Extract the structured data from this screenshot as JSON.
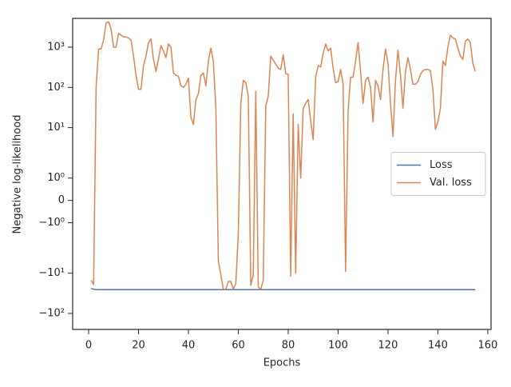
{
  "chart_data": {
    "type": "line",
    "xlabel": "Epochs",
    "ylabel": "Negative log-likelihood",
    "yscale": "symlog",
    "linthresh": 2,
    "xlim": [
      -6.4,
      161.3
    ],
    "xticks": [
      0,
      20,
      40,
      60,
      80,
      100,
      120,
      140,
      160
    ],
    "ylim": [
      -250,
      5200
    ],
    "yticks": [
      {
        "value": 1000,
        "label": "10³"
      },
      {
        "value": 100,
        "label": "10²"
      },
      {
        "value": 10,
        "label": "10¹"
      },
      {
        "value": 1,
        "label": "10⁰"
      },
      0,
      {
        "value": -1,
        "label": "−10⁰"
      },
      {
        "value": -10,
        "label": "−10¹"
      },
      {
        "value": -100,
        "label": "−10²"
      }
    ],
    "legend": "center right",
    "x": [
      1,
      2,
      3,
      4,
      5,
      6,
      7,
      8,
      9,
      10,
      11,
      12,
      13,
      14,
      15,
      16,
      17,
      18,
      19,
      20,
      21,
      22,
      23,
      24,
      25,
      26,
      27,
      28,
      29,
      30,
      31,
      32,
      33,
      34,
      35,
      36,
      37,
      38,
      39,
      40,
      41,
      42,
      43,
      44,
      45,
      46,
      47,
      48,
      49,
      50,
      51,
      52,
      53,
      54,
      55,
      56,
      57,
      58,
      59,
      60,
      61,
      62,
      63,
      64,
      65,
      66,
      67,
      68,
      69,
      70,
      71,
      72,
      73,
      74,
      75,
      76,
      77,
      78,
      79,
      80,
      81,
      82,
      83,
      84,
      85,
      86,
      87,
      88,
      89,
      90,
      91,
      92,
      93,
      94,
      95,
      96,
      97,
      98,
      99,
      100,
      101,
      102,
      103,
      104,
      105,
      106,
      107,
      108,
      109,
      110,
      111,
      112,
      113,
      114,
      115,
      116,
      117,
      118,
      119,
      120,
      121,
      122,
      123,
      124,
      125,
      126,
      127,
      128,
      129,
      130,
      131,
      132,
      133,
      134,
      135,
      136,
      137,
      138,
      139,
      140,
      141,
      142,
      143,
      144,
      145,
      146,
      147,
      148,
      149,
      150,
      151,
      152,
      153,
      154,
      155
    ],
    "series": [
      {
        "name": "Loss",
        "color": "#4c72b0",
        "values": [
          -24,
          -25,
          -25.5,
          -25.6,
          -25.6,
          -25.6,
          -25.6,
          -25.6,
          -25.6,
          -25.6,
          -25.6,
          -25.6,
          -25.6,
          -25.6,
          -25.6,
          -25.6,
          -25.6,
          -25.6,
          -25.6,
          -25.6,
          -25.6,
          -25.6,
          -25.6,
          -25.6,
          -25.6,
          -25.6,
          -25.6,
          -25.6,
          -25.6,
          -25.6,
          -25.6,
          -25.6,
          -25.6,
          -25.6,
          -25.6,
          -25.6,
          -25.6,
          -25.6,
          -25.6,
          -25.6,
          -25.6,
          -25.6,
          -25.6,
          -25.6,
          -25.6,
          -25.6,
          -25.6,
          -25.6,
          -25.6,
          -25.6,
          -25.6,
          -25.6,
          -25.6,
          -25.6,
          -25.6,
          -25.6,
          -25.6,
          -25.6,
          -25.6,
          -25.6,
          -25.6,
          -25.6,
          -25.6,
          -25.6,
          -25.6,
          -25.6,
          -25.6,
          -25.6,
          -25.6,
          -25.6,
          -25.6,
          -25.6,
          -25.6,
          -25.6,
          -25.6,
          -25.6,
          -25.6,
          -25.6,
          -25.6,
          -25.6,
          -25.6,
          -25.6,
          -25.6,
          -25.6,
          -25.6,
          -25.6,
          -25.6,
          -25.6,
          -25.6,
          -25.6,
          -25.6,
          -25.6,
          -25.6,
          -25.6,
          -25.6,
          -25.6,
          -25.6,
          -25.6,
          -25.6,
          -25.6,
          -25.6,
          -25.6,
          -25.6,
          -25.6,
          -25.6,
          -25.6,
          -25.6,
          -25.6,
          -25.6,
          -25.6,
          -25.6,
          -25.6,
          -25.6,
          -25.6,
          -25.6,
          -25.6,
          -25.6,
          -25.6,
          -25.6,
          -25.6,
          -25.6,
          -25.6,
          -25.6,
          -25.6,
          -25.6,
          -25.6,
          -25.6,
          -25.6,
          -25.6,
          -25.6,
          -25.6,
          -25.6,
          -25.6,
          -25.6,
          -25.6,
          -25.6,
          -25.6,
          -25.6,
          -25.6,
          -25.6,
          -25.6,
          -25.6,
          -25.6,
          -25.6,
          -25.6,
          -25.6,
          -25.6,
          -25.6,
          -25.6,
          -25.6,
          -25.6,
          -25.6,
          -25.6,
          -25.6,
          -25.6
        ]
      },
      {
        "name": "Val. loss",
        "color": "#dd8452",
        "values": [
          -15,
          -19,
          100,
          900,
          900,
          1500,
          4000,
          4300,
          2800,
          1000,
          1000,
          2200,
          2000,
          1800,
          1800,
          1700,
          1500,
          600,
          200,
          90,
          90,
          350,
          600,
          1300,
          1600,
          500,
          250,
          500,
          1100,
          800,
          550,
          1200,
          1000,
          230,
          200,
          190,
          110,
          100,
          120,
          170,
          18,
          12,
          50,
          70,
          200,
          230,
          110,
          450,
          950,
          450,
          30,
          -5,
          -11,
          -25,
          -25,
          -16,
          -16,
          -25,
          -18,
          -1.5,
          40,
          150,
          130,
          60,
          -20,
          -11,
          80,
          -22,
          -25,
          -15,
          35,
          60,
          600,
          480,
          380,
          300,
          280,
          650,
          220,
          210,
          -12,
          22,
          -10,
          12,
          1,
          30,
          40,
          50,
          15,
          5,
          180,
          350,
          320,
          700,
          1200,
          800,
          950,
          300,
          130,
          140,
          280,
          120,
          -9,
          25,
          180,
          180,
          450,
          1300,
          250,
          40,
          150,
          180,
          100,
          14,
          150,
          110,
          50,
          280,
          900,
          400,
          40,
          6,
          150,
          850,
          200,
          30,
          250,
          550,
          280,
          120,
          120,
          140,
          210,
          260,
          280,
          280,
          260,
          90,
          9,
          14,
          30,
          450,
          350,
          1000,
          2000,
          1700,
          1600,
          950,
          600,
          500,
          1400,
          1600,
          1300,
          400,
          250
        ]
      }
    ]
  }
}
